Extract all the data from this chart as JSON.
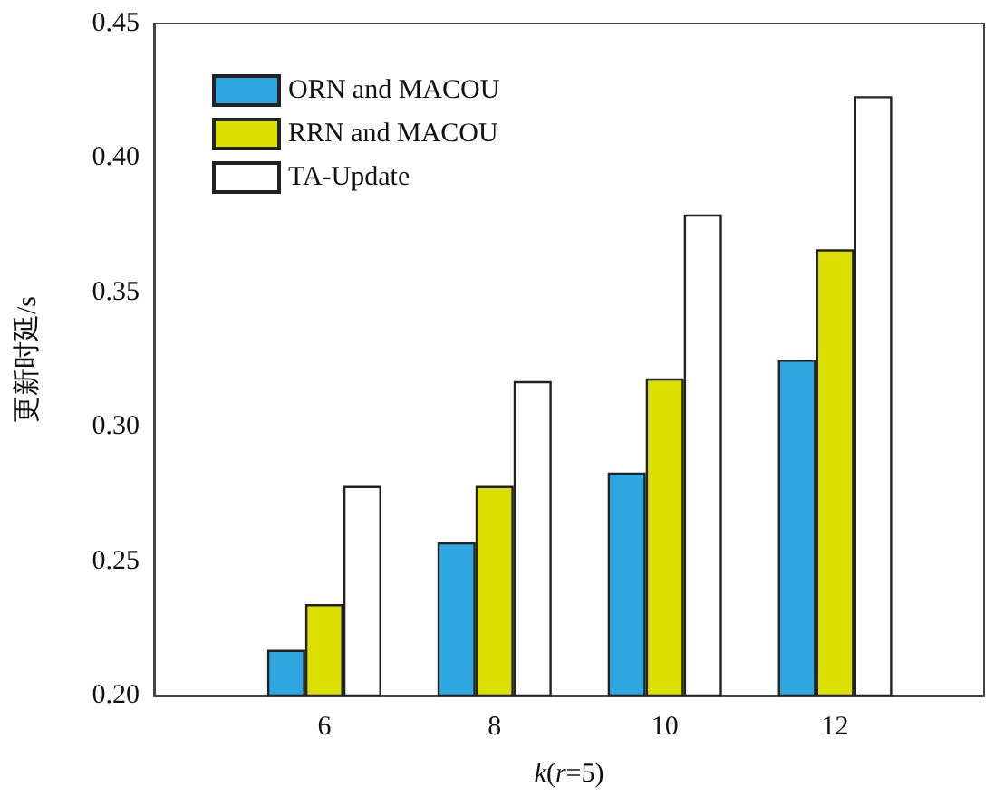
{
  "chart_data": {
    "type": "bar",
    "xlabel": "k(r=5)",
    "ylabel": "更新时延/s",
    "x": [
      6,
      8,
      10,
      12
    ],
    "xlim": [
      4,
      13.75
    ],
    "xticks": [
      6,
      8,
      10,
      12
    ],
    "ylim": [
      0.2,
      0.45
    ],
    "yticks": [
      {
        "value": 0.2,
        "label": "0.20"
      },
      0.25,
      {
        "value": 0.3,
        "label": "0.30"
      },
      0.35,
      {
        "value": 0.4,
        "label": "0.40"
      },
      0.45
    ],
    "legend": "top left",
    "grid": false,
    "series": [
      {
        "name": "ORN and MACOU",
        "color": "#2ea6e0",
        "values": [
          0.217,
          0.257,
          0.283,
          0.325
        ]
      },
      {
        "name": "RRN and MACOU",
        "color": "#dce000",
        "values": [
          0.234,
          0.278,
          0.318,
          0.366
        ]
      },
      {
        "name": "TA-Update",
        "color": "#ffffff",
        "values": [
          0.278,
          0.317,
          0.379,
          0.423
        ]
      }
    ]
  }
}
